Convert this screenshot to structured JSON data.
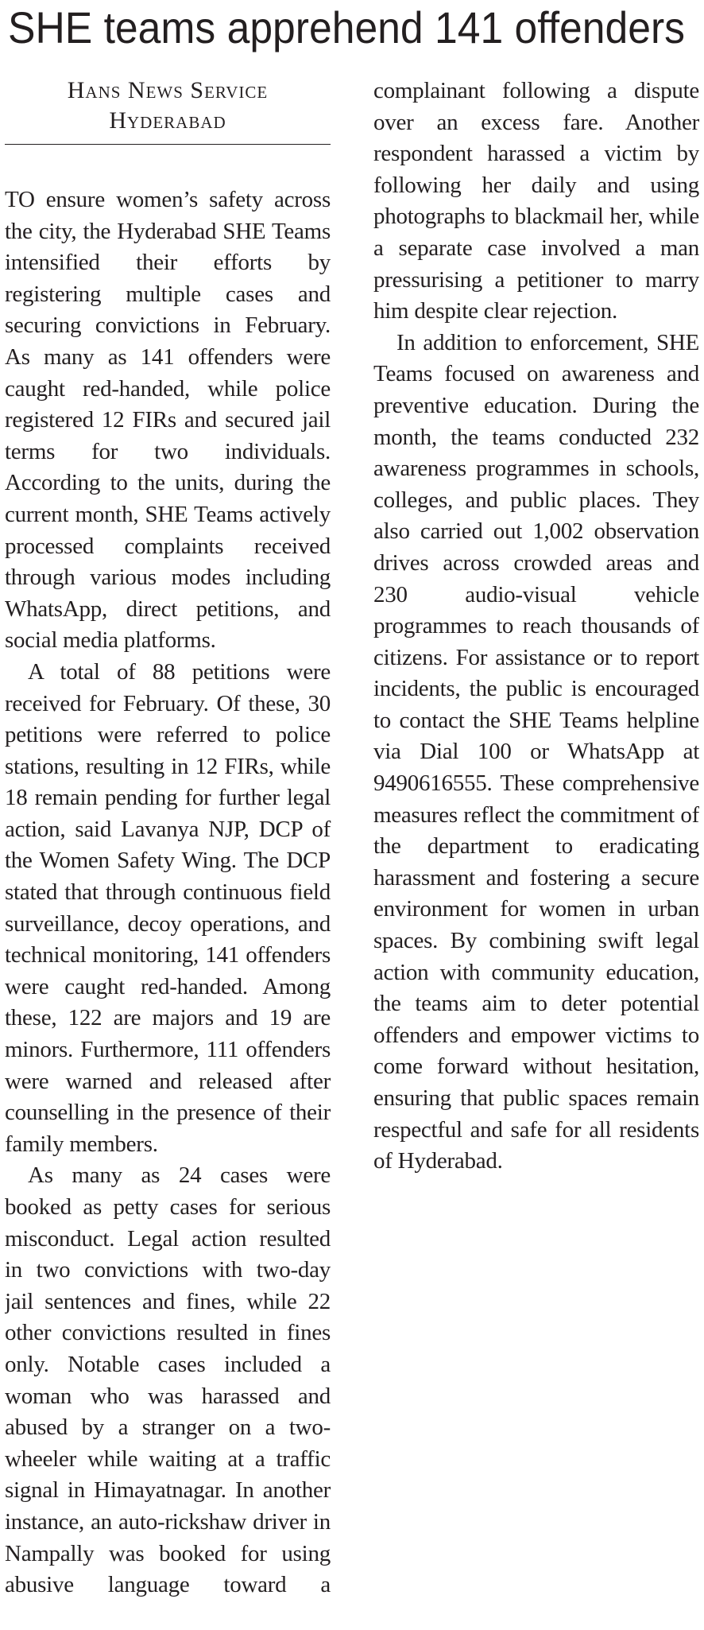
{
  "headline": "SHE teams apprehend 141 offenders",
  "byline": {
    "agency": "Hans News Service",
    "location": "Hyderabad"
  },
  "paragraphs": [
    "TO ensure women’s safety across the city, the Hyderabad SHE Teams intensified their efforts by registering multiple cases and securing convictions in February. As many as 141 offenders were caught red-handed, while police registered 12 FIRs and secured jail terms for two individuals. According to the units, during the current month, SHE Teams actively processed complaints received through various modes including WhatsApp, direct petitions, and social media platforms.",
    "A total of 88 petitions were received for February. Of these, 30 petitions were referred to police stations, resulting in 12 FIRs, while 18 remain pending for further legal action, said Lavanya NJP, DCP of the Women Safety Wing. The DCP stated that through continuous field surveillance, decoy operations, and technical monitoring, 141 offenders were caught red-handed. Among these, 122 are majors and 19 are minors. Furthermore, 111 offenders were warned and released after counselling in the presence of their family members.",
    "As many as 24 cases were booked as petty cases for serious misconduct. Legal action resulted in two convictions with two-day jail sentences and fines, while 22 other convictions resulted in fines only. Notable cases included a woman who was harassed and abused by a stranger on a two-wheeler while waiting at a traffic signal in Himayatnagar. In another instance, an auto-rickshaw driver in Nampally was booked for using abusive language toward a complainant following a dispute over an excess fare. Another respondent harassed a victim by following her daily and using photographs to blackmail her, while a separate case involved a man pressurising a petitioner to marry him despite clear rejection.",
    "In addition to enforcement, SHE Teams focused on awareness and preventive education. During the month, the teams conducted 232 awareness programmes in schools, colleges, and public places. They also carried out 1,002 observation drives across crowded areas and 230 audio-visual vehicle programmes to reach thousands of citizens. For assistance or to report incidents, the public is encouraged to contact the SHE Teams helpline via Dial 100 or WhatsApp at 9490616555. These comprehensive measures reflect the commitment of the department to eradicating harassment and fostering a secure environment for women in urban spaces. By combining swift legal action with community education, the teams aim to deter potential offenders and empower victims to come forward without hesitation, ensuring that public spaces remain respectful and safe for all residents of Hyderabad."
  ]
}
